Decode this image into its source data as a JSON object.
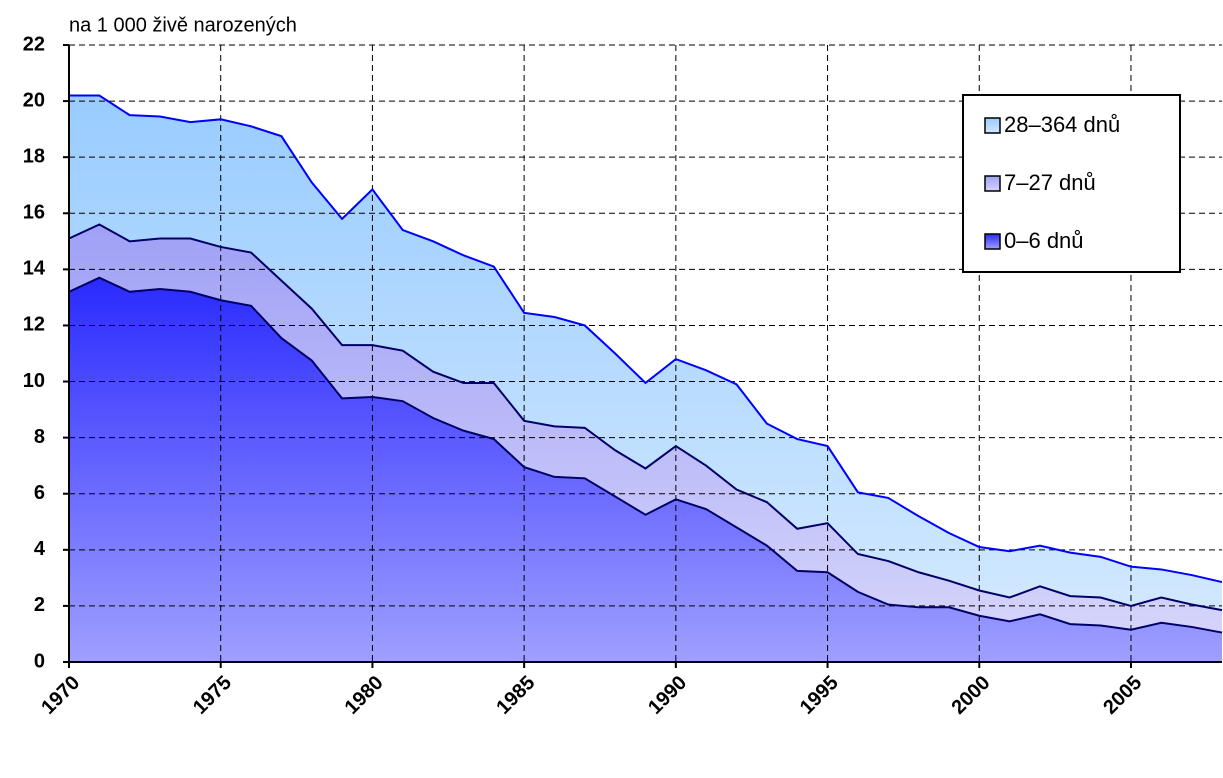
{
  "chart_data": {
    "type": "stacked_area",
    "ylabel": "na 1 000 živě narozených",
    "x": [
      1970,
      1971,
      1972,
      1973,
      1974,
      1975,
      1976,
      1977,
      1978,
      1979,
      1980,
      1981,
      1982,
      1983,
      1984,
      1985,
      1986,
      1987,
      1988,
      1989,
      1990,
      1991,
      1992,
      1993,
      1994,
      1995,
      1996,
      1997,
      1998,
      1999,
      2000,
      2001,
      2002,
      2003,
      2004,
      2005,
      2006,
      2007,
      2008
    ],
    "xlim": [
      1970,
      2008
    ],
    "xticks": [
      1970,
      1975,
      1980,
      1985,
      1990,
      1995,
      2000,
      2005
    ],
    "ylim": [
      0,
      22
    ],
    "yticks": [
      0,
      2,
      4,
      6,
      8,
      10,
      12,
      14,
      16,
      18,
      20,
      22
    ],
    "grid": true,
    "legend": "upper right",
    "series": [
      {
        "name": "0–6 dnů",
        "color": "#2a2aff",
        "line_color": "#000066",
        "values": [
          13.2,
          13.7,
          13.2,
          13.3,
          13.2,
          12.9,
          12.7,
          11.55,
          10.75,
          9.4,
          9.45,
          9.3,
          8.7,
          8.25,
          7.95,
          6.95,
          6.6,
          6.55,
          5.9,
          5.25,
          5.8,
          5.45,
          4.8,
          4.15,
          3.25,
          3.2,
          2.5,
          2.05,
          1.95,
          1.95,
          1.65,
          1.45,
          1.7,
          1.35,
          1.3,
          1.15,
          1.4,
          1.25,
          1.05
        ]
      },
      {
        "name": "7–27 dnů",
        "color": "#a0a0f6",
        "line_color": "#000066",
        "values": [
          1.9,
          1.9,
          1.8,
          1.8,
          1.9,
          1.9,
          1.9,
          2.05,
          1.85,
          1.9,
          1.85,
          1.8,
          1.65,
          1.7,
          2.0,
          1.65,
          1.8,
          1.8,
          1.65,
          1.65,
          1.9,
          1.55,
          1.35,
          1.55,
          1.5,
          1.75,
          1.35,
          1.55,
          1.25,
          0.95,
          0.9,
          0.85,
          1.0,
          1.0,
          1.0,
          0.85,
          0.9,
          0.8,
          0.8
        ]
      },
      {
        "name": "28–364 dnů",
        "color": "#99ccff",
        "line_color": "#0000ff",
        "values": [
          5.1,
          4.6,
          4.5,
          4.35,
          4.15,
          4.55,
          4.5,
          5.15,
          4.5,
          4.5,
          5.55,
          4.3,
          4.65,
          4.55,
          4.15,
          3.85,
          3.9,
          3.65,
          3.45,
          3.05,
          3.1,
          3.4,
          3.75,
          2.8,
          3.2,
          2.75,
          2.2,
          2.25,
          2.0,
          1.7,
          1.55,
          1.65,
          1.45,
          1.55,
          1.45,
          1.4,
          1.0,
          1.05,
          1.0
        ]
      }
    ]
  }
}
